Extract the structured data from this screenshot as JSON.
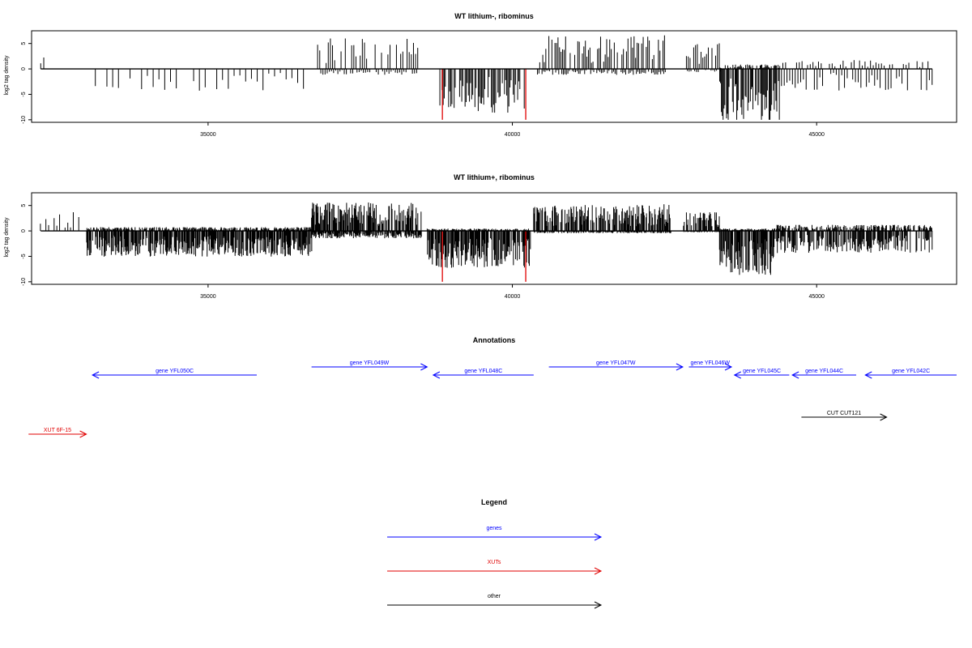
{
  "chart_data": [
    {
      "type": "bar",
      "title": "WT lithium-, ribominus",
      "ylabel": "log2 tag density",
      "xlabel": "",
      "xlim": [
        32100,
        47300
      ],
      "ylim": [
        -10.5,
        7.5
      ],
      "x_ticks": [
        35000,
        40000,
        45000
      ],
      "y_ticks": [
        -10,
        -5,
        0,
        5
      ],
      "grid": false,
      "bar_color": "#000000",
      "highlight_color": "#e00000",
      "highlights": [
        {
          "x": 38850,
          "y": -10
        },
        {
          "x": 40220,
          "y": -10
        }
      ],
      "segments": [
        {
          "start": 32250,
          "end": 32300,
          "pos": 1.5,
          "neg": 0,
          "step": 50
        },
        {
          "start": 33100,
          "end": 36600,
          "pos": 0,
          "neg": -3.0,
          "step": 95
        },
        {
          "start": 36800,
          "end": 38450,
          "pos": 4.0,
          "neg": -0.8,
          "step": 35
        },
        {
          "start": 38800,
          "end": 40200,
          "pos": 0,
          "neg": -6.0,
          "step": 18
        },
        {
          "start": 40400,
          "end": 42500,
          "pos": 4.5,
          "neg": -0.8,
          "step": 25
        },
        {
          "start": 42800,
          "end": 43400,
          "pos": 3.5,
          "neg": -0.5,
          "step": 30
        },
        {
          "start": 43400,
          "end": 44400,
          "pos": 0.6,
          "neg": -7.5,
          "step": 14
        },
        {
          "start": 44400,
          "end": 46900,
          "pos": 1.2,
          "neg": -3.0,
          "step": 45
        }
      ]
    },
    {
      "type": "bar",
      "title": "WT lithium+, ribominus",
      "ylabel": "log2 tag density",
      "xlabel": "",
      "xlim": [
        32100,
        47300
      ],
      "ylim": [
        -10.5,
        7.5
      ],
      "x_ticks": [
        35000,
        40000,
        45000
      ],
      "y_ticks": [
        -10,
        -5,
        0,
        5
      ],
      "grid": false,
      "bar_color": "#000000",
      "highlight_color": "#e00000",
      "highlights": [
        {
          "x": 38850,
          "y": -10
        },
        {
          "x": 40220,
          "y": -10
        }
      ],
      "segments": [
        {
          "start": 32200,
          "end": 32900,
          "pos": 2.5,
          "neg": 0,
          "step": 45
        },
        {
          "start": 33000,
          "end": 36700,
          "pos": 0.5,
          "neg": -3.5,
          "step": 9
        },
        {
          "start": 36700,
          "end": 38500,
          "pos": 3.8,
          "neg": -1.0,
          "step": 9
        },
        {
          "start": 38600,
          "end": 40300,
          "pos": 0.3,
          "neg": -5.0,
          "step": 9
        },
        {
          "start": 40350,
          "end": 42600,
          "pos": 3.5,
          "neg": -0.3,
          "step": 9
        },
        {
          "start": 42800,
          "end": 43400,
          "pos": 2.5,
          "neg": -0.2,
          "step": 12
        },
        {
          "start": 43400,
          "end": 44300,
          "pos": 0.3,
          "neg": -6.0,
          "step": 8
        },
        {
          "start": 44300,
          "end": 46900,
          "pos": 0.8,
          "neg": -3.0,
          "step": 12
        }
      ]
    }
  ],
  "annotations": {
    "title": "Annotations",
    "xlim": [
      32100,
      47300
    ],
    "features": [
      {
        "label": "gene YFL050C",
        "start": 33100,
        "end": 35800,
        "strand": "-",
        "row": 2,
        "color": "#0000ff"
      },
      {
        "label": "gene YFL049W",
        "start": 36700,
        "end": 38600,
        "strand": "+",
        "row": 1,
        "color": "#0000ff"
      },
      {
        "label": "gene YFL048C",
        "start": 38700,
        "end": 40350,
        "strand": "-",
        "row": 2,
        "color": "#0000ff"
      },
      {
        "label": "gene YFL047W",
        "start": 40600,
        "end": 42800,
        "strand": "+",
        "row": 1,
        "color": "#0000ff"
      },
      {
        "label": "gene YFL046W",
        "start": 42900,
        "end": 43600,
        "strand": "+",
        "row": 1,
        "color": "#0000ff"
      },
      {
        "label": "gene YFL045C",
        "start": 43650,
        "end": 44550,
        "strand": "-",
        "row": 2,
        "color": "#0000ff"
      },
      {
        "label": "gene YFL044C",
        "start": 44600,
        "end": 45650,
        "strand": "-",
        "row": 2,
        "color": "#0000ff"
      },
      {
        "label": "gene YFL042C",
        "start": 45800,
        "end": 47300,
        "strand": "-",
        "row": 2,
        "color": "#0000ff"
      },
      {
        "label": "CUT CUT121",
        "start": 44750,
        "end": 46150,
        "strand": "+",
        "row": 3,
        "color": "#000000"
      },
      {
        "label": "XUT 6F-15",
        "start": 32050,
        "end": 33000,
        "strand": "+",
        "row": 4,
        "color": "#e00000"
      }
    ]
  },
  "legend": {
    "title": "Legend",
    "items": [
      {
        "label": "genes",
        "color": "#0000ff"
      },
      {
        "label": "XUTs",
        "color": "#e00000"
      },
      {
        "label": "other",
        "color": "#000000"
      }
    ]
  }
}
